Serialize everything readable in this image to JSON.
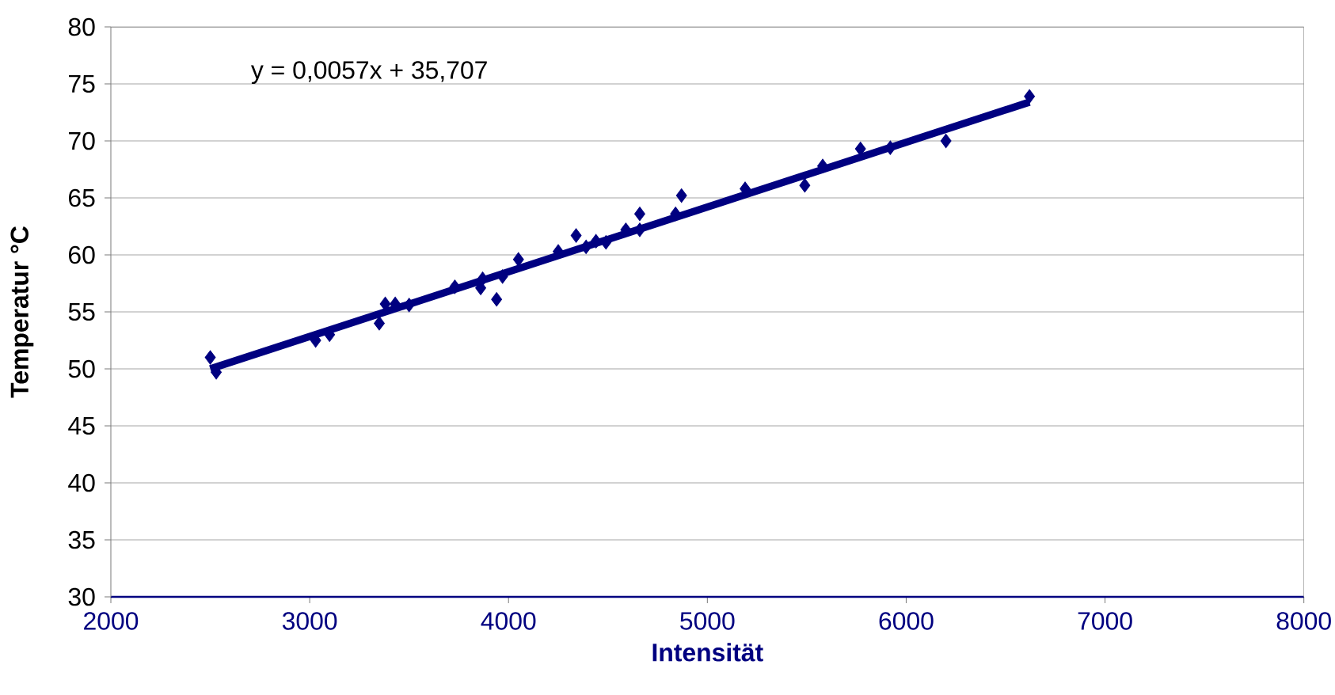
{
  "chart_data": {
    "type": "scatter",
    "xlabel": "Intensität",
    "ylabel": "Temperatur °C",
    "annotations": [
      "y = 0,0057x  + 35,707"
    ],
    "series": [
      {
        "color": "#000080",
        "marker": "diamond",
        "x": [
          2500,
          2530,
          3030,
          3100,
          3350,
          3380,
          3430,
          3500,
          3730,
          3860,
          3870,
          3940,
          3970,
          4050,
          4250,
          4340,
          4390,
          4440,
          4490,
          4590,
          4660,
          4660,
          4840,
          4870,
          5190,
          5490,
          5580,
          5770,
          5920,
          6200,
          6620
        ],
        "values": [
          51.0,
          49.7,
          52.5,
          53.0,
          54.0,
          55.7,
          55.7,
          55.6,
          57.2,
          57.1,
          57.9,
          56.1,
          58.1,
          59.6,
          60.3,
          61.7,
          60.7,
          61.2,
          61.1,
          62.2,
          63.6,
          62.2,
          63.6,
          65.2,
          65.8,
          66.1,
          67.8,
          69.3,
          69.4,
          70.0,
          73.9
        ]
      },
      {
        "type": "line",
        "color": "#000080",
        "x": [
          2500,
          6620
        ],
        "values": [
          50.0,
          73.4
        ]
      }
    ],
    "xlim": [
      2000,
      8000
    ],
    "ylim": [
      30,
      80
    ],
    "xticks": [
      2000,
      3000,
      4000,
      5000,
      6000,
      7000,
      8000
    ],
    "yticks": [
      30,
      35,
      40,
      45,
      50,
      55,
      60,
      65,
      70,
      75,
      80
    ],
    "grid": "y"
  }
}
